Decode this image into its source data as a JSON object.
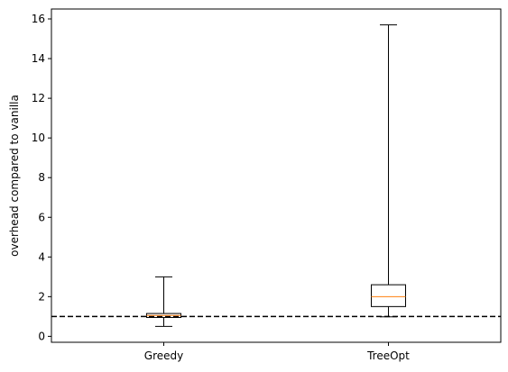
{
  "chart_data": {
    "type": "box",
    "title": "",
    "xlabel": "",
    "ylabel": "overhead compared to vanilla",
    "ylim": [
      -0.3,
      16.5
    ],
    "yticks": [
      0,
      2,
      4,
      6,
      8,
      10,
      12,
      14,
      16
    ],
    "ytick_labels": [
      "0",
      "2",
      "4",
      "6",
      "8",
      "10",
      "12",
      "14",
      "16"
    ],
    "categories": [
      "Greedy",
      "TreeOpt"
    ],
    "boxes": [
      {
        "label": "Greedy",
        "whisker_low": 0.5,
        "q1": 0.95,
        "median": 1.05,
        "q3": 1.15,
        "whisker_high": 3.0
      },
      {
        "label": "TreeOpt",
        "whisker_low": 0.98,
        "q1": 1.5,
        "median": 2.0,
        "q3": 2.6,
        "whisker_high": 15.7
      }
    ],
    "reference_line": {
      "y": 1.0,
      "style": "dashed",
      "color": "#000000"
    },
    "grid": false,
    "legend": "none",
    "colors": {
      "box": "#000000",
      "median": "#ff7f0e",
      "axis": "#000000"
    }
  }
}
